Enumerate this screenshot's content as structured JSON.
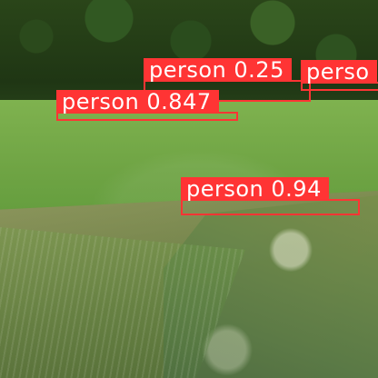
{
  "image": {
    "palette": {
      "forest": "#23401a",
      "grass": "#6fa444",
      "water": "#5f7b47",
      "detection_red": "#ff3434",
      "label_text": "#ffffff"
    }
  },
  "detections": [
    {
      "class_name": "person",
      "confidence": "0.25",
      "label": "person 0.25"
    },
    {
      "class_name": "person",
      "confidence": "",
      "label": "perso"
    },
    {
      "class_name": "person",
      "confidence": "0.847",
      "label": "person 0.847"
    },
    {
      "class_name": "person",
      "confidence": "0.94",
      "label": "person 0.94"
    }
  ]
}
